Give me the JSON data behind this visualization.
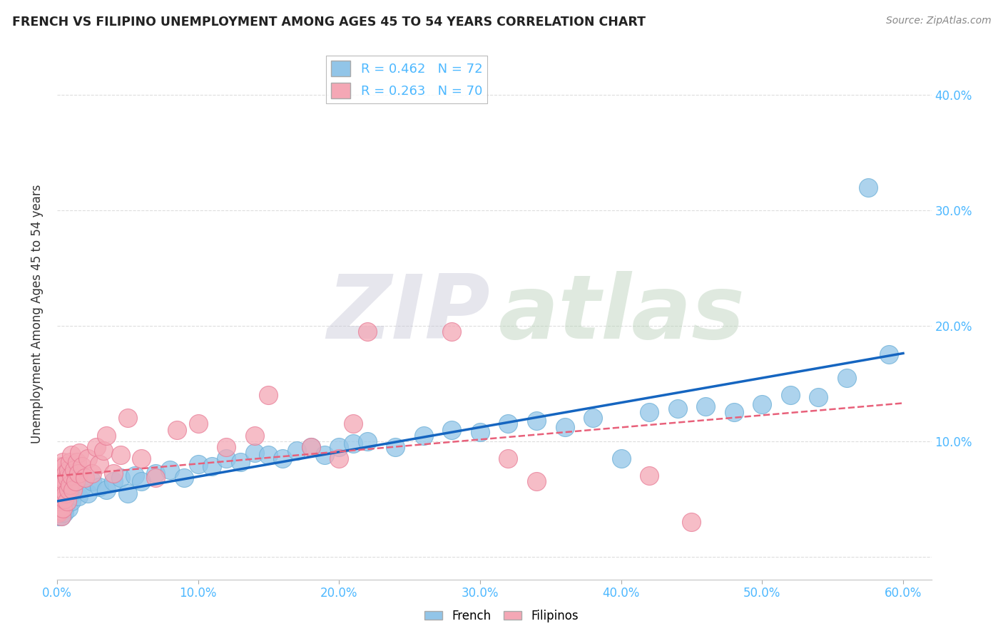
{
  "title": "FRENCH VS FILIPINO UNEMPLOYMENT AMONG AGES 45 TO 54 YEARS CORRELATION CHART",
  "source": "Source: ZipAtlas.com",
  "ylabel": "Unemployment Among Ages 45 to 54 years",
  "xlim": [
    0.0,
    0.62
  ],
  "ylim": [
    -0.02,
    0.44
  ],
  "xticks": [
    0.0,
    0.1,
    0.2,
    0.3,
    0.4,
    0.5,
    0.6
  ],
  "yticks": [
    0.0,
    0.1,
    0.2,
    0.3,
    0.4
  ],
  "xtick_labels": [
    "0.0%",
    "10.0%",
    "20.0%",
    "30.0%",
    "40.0%",
    "50.0%",
    "60.0%"
  ],
  "ytick_labels_right": [
    "",
    "10.0%",
    "20.0%",
    "30.0%",
    "40.0%"
  ],
  "french_R": 0.462,
  "french_N": 72,
  "filipino_R": 0.263,
  "filipino_N": 70,
  "french_color": "#92C5E8",
  "filipino_color": "#F4A7B5",
  "french_edge_color": "#6AAED6",
  "filipino_edge_color": "#E87A95",
  "french_line_color": "#1565C0",
  "filipino_line_color": "#E8607A",
  "tick_color": "#4DB8FF",
  "background_color": "#ffffff",
  "grid_color": "#DDDDDD",
  "french_x": [
    0.001,
    0.001,
    0.001,
    0.002,
    0.002,
    0.002,
    0.002,
    0.003,
    0.003,
    0.003,
    0.003,
    0.004,
    0.004,
    0.004,
    0.005,
    0.005,
    0.005,
    0.006,
    0.006,
    0.007,
    0.007,
    0.008,
    0.009,
    0.01,
    0.01,
    0.012,
    0.015,
    0.018,
    0.022,
    0.025,
    0.03,
    0.035,
    0.04,
    0.045,
    0.05,
    0.055,
    0.06,
    0.07,
    0.08,
    0.09,
    0.1,
    0.11,
    0.12,
    0.13,
    0.14,
    0.15,
    0.16,
    0.17,
    0.18,
    0.19,
    0.2,
    0.21,
    0.22,
    0.24,
    0.26,
    0.28,
    0.3,
    0.32,
    0.34,
    0.36,
    0.38,
    0.4,
    0.42,
    0.44,
    0.46,
    0.48,
    0.5,
    0.52,
    0.54,
    0.56,
    0.575,
    0.59
  ],
  "french_y": [
    0.04,
    0.038,
    0.035,
    0.042,
    0.038,
    0.045,
    0.04,
    0.038,
    0.048,
    0.035,
    0.05,
    0.045,
    0.038,
    0.055,
    0.042,
    0.05,
    0.038,
    0.045,
    0.055,
    0.048,
    0.06,
    0.042,
    0.052,
    0.055,
    0.048,
    0.058,
    0.052,
    0.06,
    0.055,
    0.065,
    0.06,
    0.058,
    0.065,
    0.068,
    0.055,
    0.07,
    0.065,
    0.072,
    0.075,
    0.068,
    0.08,
    0.078,
    0.085,
    0.082,
    0.09,
    0.088,
    0.085,
    0.092,
    0.095,
    0.088,
    0.095,
    0.098,
    0.1,
    0.095,
    0.105,
    0.11,
    0.108,
    0.115,
    0.118,
    0.112,
    0.12,
    0.085,
    0.125,
    0.128,
    0.13,
    0.125,
    0.132,
    0.14,
    0.138,
    0.155,
    0.32,
    0.175
  ],
  "filipino_x": [
    0.001,
    0.001,
    0.001,
    0.001,
    0.001,
    0.001,
    0.001,
    0.002,
    0.002,
    0.002,
    0.002,
    0.002,
    0.002,
    0.002,
    0.002,
    0.003,
    0.003,
    0.003,
    0.003,
    0.003,
    0.004,
    0.004,
    0.004,
    0.004,
    0.005,
    0.005,
    0.005,
    0.006,
    0.006,
    0.007,
    0.007,
    0.008,
    0.008,
    0.009,
    0.009,
    0.01,
    0.01,
    0.011,
    0.012,
    0.013,
    0.014,
    0.015,
    0.016,
    0.018,
    0.02,
    0.022,
    0.025,
    0.028,
    0.03,
    0.033,
    0.035,
    0.04,
    0.045,
    0.05,
    0.06,
    0.07,
    0.085,
    0.1,
    0.12,
    0.14,
    0.15,
    0.18,
    0.2,
    0.21,
    0.22,
    0.28,
    0.32,
    0.34,
    0.42,
    0.45
  ],
  "filipino_y": [
    0.038,
    0.042,
    0.05,
    0.058,
    0.055,
    0.048,
    0.065,
    0.04,
    0.055,
    0.06,
    0.068,
    0.072,
    0.048,
    0.062,
    0.07,
    0.035,
    0.055,
    0.065,
    0.072,
    0.078,
    0.042,
    0.058,
    0.068,
    0.082,
    0.05,
    0.065,
    0.078,
    0.055,
    0.072,
    0.048,
    0.068,
    0.058,
    0.075,
    0.062,
    0.082,
    0.07,
    0.088,
    0.058,
    0.075,
    0.065,
    0.082,
    0.072,
    0.09,
    0.078,
    0.068,
    0.085,
    0.072,
    0.095,
    0.08,
    0.092,
    0.105,
    0.072,
    0.088,
    0.12,
    0.085,
    0.068,
    0.11,
    0.115,
    0.095,
    0.105,
    0.14,
    0.095,
    0.085,
    0.115,
    0.195,
    0.195,
    0.085,
    0.065,
    0.07,
    0.03
  ]
}
